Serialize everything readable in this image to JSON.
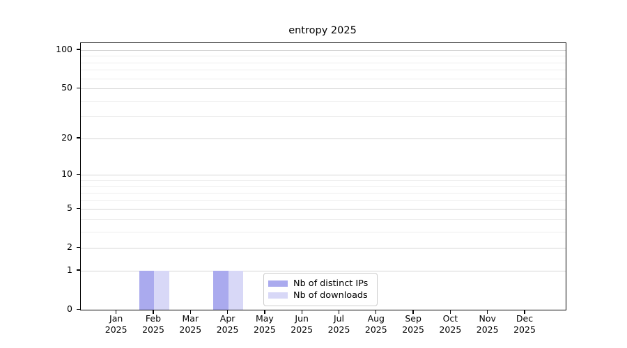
{
  "chart_data": {
    "type": "bar",
    "title": "entropy 2025",
    "categories": [
      "Jan 2025",
      "Feb 2025",
      "Mar 2025",
      "Apr 2025",
      "May 2025",
      "Jun 2025",
      "Jul 2025",
      "Aug 2025",
      "Sep 2025",
      "Oct 2025",
      "Nov 2025",
      "Dec 2025"
    ],
    "series": [
      {
        "name": "Nb of distinct IPs",
        "color": "#aaaaee",
        "values": [
          0,
          1,
          0,
          1,
          0,
          0,
          0,
          0,
          0,
          0,
          0,
          0
        ]
      },
      {
        "name": "Nb of downloads",
        "color": "#d8d8f7",
        "values": [
          0,
          1,
          0,
          1,
          0,
          0,
          0,
          0,
          0,
          0,
          0,
          0
        ]
      }
    ],
    "y_axis": {
      "ticks": [
        0,
        1,
        2,
        5,
        10,
        20,
        50,
        100
      ],
      "minor_ticks": [
        3,
        4,
        6,
        7,
        8,
        9,
        30,
        40,
        60,
        70,
        80,
        90
      ],
      "scale": "log10(1+y)",
      "ylim": [
        0,
        113
      ]
    },
    "legend": {
      "position": "lower center",
      "items": [
        "Nb of distinct IPs",
        "Nb of downloads"
      ]
    },
    "grid": true
  },
  "colors": {
    "bar_distinct_ips": "#aaaaee",
    "bar_downloads": "#d8d8f7",
    "major_grid": "#d4d4d4",
    "minor_grid": "#ededed",
    "spine": "#000000",
    "legend_border": "#cccccc",
    "background": "#ffffff",
    "text": "#000000"
  }
}
